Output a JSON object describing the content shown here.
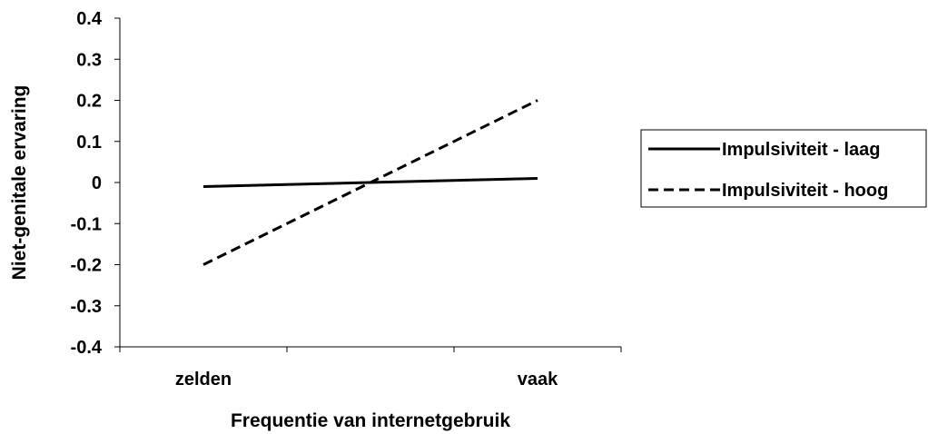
{
  "chart_data": {
    "type": "line",
    "categories": [
      "zelden",
      "vaak"
    ],
    "series": [
      {
        "name": "Impulsiviteit - laag",
        "values": [
          -0.01,
          0.01
        ],
        "dash": "solid",
        "color": "#000000"
      },
      {
        "name": "Impulsiviteit - hoog",
        "values": [
          -0.2,
          0.2
        ],
        "dash": "dashed",
        "color": "#000000"
      }
    ],
    "xlabel": "Frequentie van internetgebruik",
    "ylabel": "Niet-genitale ervaring",
    "ylim": [
      -0.4,
      0.4
    ],
    "yticks": [
      "-0.4",
      "-0.3",
      "-0.2",
      "-0.1",
      "0",
      "0.1",
      "0.2",
      "0.3",
      "0.4"
    ],
    "grid": false,
    "legend_position": "right"
  }
}
